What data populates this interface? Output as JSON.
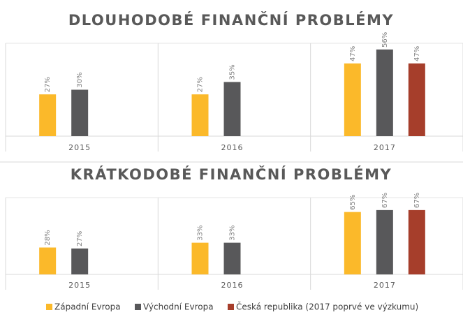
{
  "chart_data": [
    {
      "type": "bar",
      "title": "DLOUHODOBÉ FINANČNÍ PROBLÉMY",
      "categories": [
        "2015",
        "2016",
        "2017"
      ],
      "ylim": [
        0,
        60
      ],
      "series": [
        {
          "name": "Západní Evropa",
          "color": "#fbb92a",
          "values": [
            27,
            27,
            47
          ],
          "value_labels": [
            "27%",
            "27%",
            "47%"
          ]
        },
        {
          "name": "Východní Evropa",
          "color": "#58585a",
          "values": [
            30,
            35,
            56
          ],
          "value_labels": [
            "30%",
            "35%",
            "56%"
          ]
        },
        {
          "name": "Česká republika (2017 poprvé ve výzkumu)",
          "color": "#a63e2b",
          "values": [
            null,
            null,
            47
          ],
          "value_labels": [
            null,
            null,
            "47%"
          ]
        }
      ]
    },
    {
      "type": "bar",
      "title": "KRÁTKODOBÉ FINANČNÍ PROBLÉMY",
      "categories": [
        "2015",
        "2016",
        "2017"
      ],
      "ylim": [
        0,
        80
      ],
      "series": [
        {
          "name": "Západní Evropa",
          "color": "#fbb92a",
          "values": [
            28,
            33,
            65
          ],
          "value_labels": [
            "28%",
            "33%",
            "65%"
          ]
        },
        {
          "name": "Východní Evropa",
          "color": "#58585a",
          "values": [
            27,
            33,
            67
          ],
          "value_labels": [
            "27%",
            "33%",
            "67%"
          ]
        },
        {
          "name": "Česká republika (2017 poprvé ve výzkumu)",
          "color": "#a63e2b",
          "values": [
            null,
            null,
            67
          ],
          "value_labels": [
            null,
            null,
            "67%"
          ]
        }
      ]
    }
  ]
}
